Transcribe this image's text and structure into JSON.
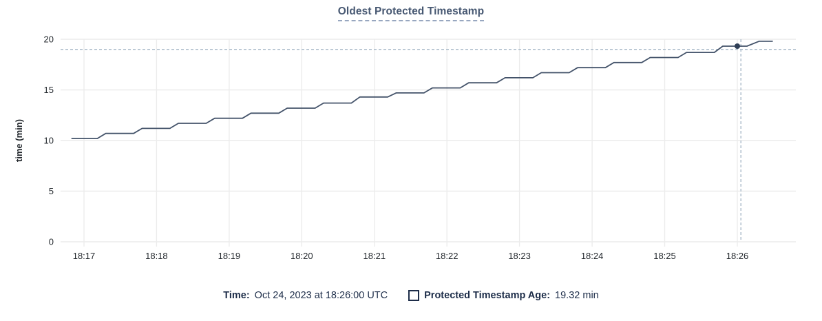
{
  "chart": {
    "title": "Oldest Protected Timestamp",
    "tooltip": {
      "time_label": "Time:",
      "time_value": "Oct 24, 2023 at 18:26:00 UTC",
      "series_label": "Protected Timestamp Age:",
      "series_value": "19.32 min"
    }
  },
  "chart_data": {
    "type": "line",
    "title": "Oldest Protected Timestamp",
    "xlabel": "",
    "ylabel": "time (min)",
    "ylim": [
      0,
      20
    ],
    "y_ticks": [
      0,
      5,
      10,
      15,
      20
    ],
    "x_tick_labels": [
      "18:17",
      "18:18",
      "18:19",
      "18:20",
      "18:21",
      "18:22",
      "18:23",
      "18:24",
      "18:25",
      "18:26"
    ],
    "grid": true,
    "legend_position": "bottom",
    "line_style": "staircase",
    "series": [
      {
        "name": "Protected Timestamp Age",
        "unit": "min",
        "points_t_seconds_from_1817_value_min": [
          [
            -10,
            10.2
          ],
          [
            11,
            10.2
          ],
          [
            18,
            10.7
          ],
          [
            41,
            10.7
          ],
          [
            48,
            11.2
          ],
          [
            71,
            11.2
          ],
          [
            78,
            11.7
          ],
          [
            101,
            11.7
          ],
          [
            108,
            12.2
          ],
          [
            131,
            12.2
          ],
          [
            138,
            12.7
          ],
          [
            161,
            12.7
          ],
          [
            168,
            13.2
          ],
          [
            191,
            13.2
          ],
          [
            198,
            13.7
          ],
          [
            221,
            13.7
          ],
          [
            228,
            14.3
          ],
          [
            251,
            14.3
          ],
          [
            258,
            14.7
          ],
          [
            281,
            14.7
          ],
          [
            288,
            15.2
          ],
          [
            311,
            15.2
          ],
          [
            318,
            15.7
          ],
          [
            341,
            15.7
          ],
          [
            348,
            16.2
          ],
          [
            371,
            16.2
          ],
          [
            378,
            16.7
          ],
          [
            401,
            16.7
          ],
          [
            408,
            17.2
          ],
          [
            431,
            17.2
          ],
          [
            438,
            17.7
          ],
          [
            461,
            17.7
          ],
          [
            468,
            18.2
          ],
          [
            491,
            18.2
          ],
          [
            498,
            18.7
          ],
          [
            521,
            18.7
          ],
          [
            528,
            19.32
          ],
          [
            548,
            19.32
          ],
          [
            558,
            19.8
          ],
          [
            569,
            19.8
          ]
        ]
      }
    ],
    "hover_point": {
      "time": "18:26:00",
      "t_seconds": 540,
      "value_min": 19.32
    },
    "crosshair": {
      "vertical_t_seconds": 543,
      "horizontal_value_min": 19.0
    }
  },
  "colors": {
    "title": "#475872",
    "line": "#44536a",
    "dot": "#2e3e56",
    "grid": "#ececec",
    "crosshair": "#a9bac9",
    "tick_text": "#24292e",
    "legend_text": "#1d2d49"
  }
}
